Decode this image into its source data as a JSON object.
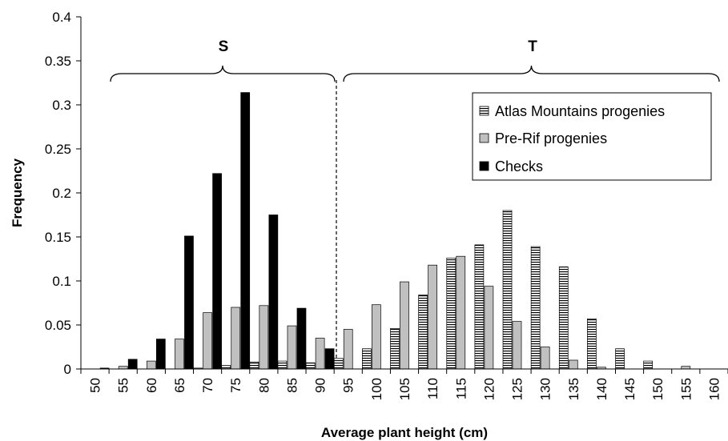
{
  "chart_data": {
    "type": "bar",
    "xlabel": "Average plant height (cm)",
    "ylabel": "Frequency",
    "ylim": [
      0,
      0.4
    ],
    "yticks": [
      "0",
      "0.05",
      "0.1",
      "0.15",
      "0.2",
      "0.25",
      "0.3",
      "0.35",
      "0.4"
    ],
    "categories": [
      "50",
      "55",
      "60",
      "65",
      "70",
      "75",
      "80",
      "85",
      "90",
      "95",
      "100",
      "105",
      "110",
      "115",
      "120",
      "125",
      "130",
      "135",
      "140",
      "145",
      "150",
      "155",
      "160"
    ],
    "series": [
      {
        "name": "Atlas Mountains progenies",
        "pattern": "horizontal-stripes",
        "values": [
          0,
          0,
          0,
          0,
          0.001,
          0.004,
          0.008,
          0.009,
          0.007,
          0.012,
          0.023,
          0.046,
          0.084,
          0.126,
          0.141,
          0.18,
          0.139,
          0.116,
          0.057,
          0.023,
          0.009,
          0,
          0
        ]
      },
      {
        "name": "Pre-Rif progenies",
        "color": "#c0c0c0",
        "values": [
          0,
          0.003,
          0.009,
          0.034,
          0.064,
          0.07,
          0.072,
          0.049,
          0.035,
          0.045,
          0.073,
          0.099,
          0.118,
          0.128,
          0.094,
          0.054,
          0.025,
          0.01,
          0.002,
          0,
          0,
          0.003,
          0
        ]
      },
      {
        "name": "Checks",
        "color": "#000000",
        "values": [
          0.001,
          0.011,
          0.034,
          0.151,
          0.222,
          0.314,
          0.175,
          0.069,
          0.023,
          0,
          0,
          0,
          0,
          0,
          0,
          0,
          0,
          0,
          0,
          0,
          0,
          0,
          0
        ]
      }
    ],
    "regions": [
      {
        "label": "S"
      },
      {
        "label": "T"
      }
    ],
    "legend_position": "top-right",
    "grid": false
  }
}
